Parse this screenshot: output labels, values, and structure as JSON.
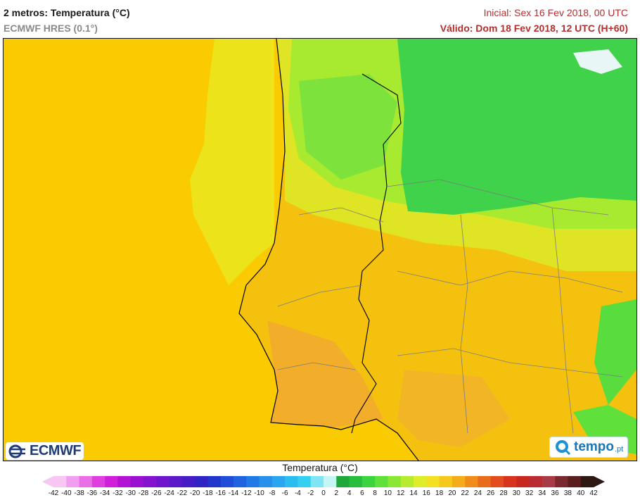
{
  "header": {
    "title": "2 metros: Temperatura (°C)",
    "model": "ECMWF HRES (0.1°)",
    "initial": "Inicial: Sex 16 Fev 2018, 00 UTC",
    "valid": "Válido: Dom 18 Fev 2018, 12 UTC (H+60)"
  },
  "logos": {
    "ecmwf": "ECMWF",
    "tempo": "tempo",
    "tempo_suffix": ".pt"
  },
  "legend": {
    "title": "Temperatura (°C)",
    "ticks": [
      "-42",
      "-40",
      "-38",
      "-36",
      "-34",
      "-32",
      "-30",
      "-28",
      "-26",
      "-24",
      "-22",
      "-20",
      "-18",
      "-16",
      "-14",
      "-12",
      "-10",
      "-8",
      "-6",
      "-4",
      "-2",
      "0",
      "2",
      "4",
      "6",
      "8",
      "10",
      "12",
      "14",
      "16",
      "18",
      "20",
      "22",
      "24",
      "26",
      "28",
      "30",
      "32",
      "34",
      "36",
      "38",
      "40",
      "42"
    ],
    "colors": [
      "#f7c6f2",
      "#f29ef0",
      "#ea6ee8",
      "#e03fe0",
      "#cf1fd8",
      "#b311d3",
      "#9a10d0",
      "#8512cf",
      "#6f16cc",
      "#5a1ac8",
      "#461cc5",
      "#2f24c4",
      "#2036cc",
      "#1f4dd8",
      "#1f63e0",
      "#1f7ae6",
      "#2690ea",
      "#2aa6ee",
      "#2bbcf0",
      "#35cff2",
      "#7ee5f4",
      "#c7f4f4",
      "#1ea83a",
      "#27be3c",
      "#3cd43e",
      "#5fe03a",
      "#8ae834",
      "#b5ec2f",
      "#dded2b",
      "#f3df24",
      "#f6c81e",
      "#f5ac1a",
      "#f08c1a",
      "#e86c1c",
      "#e14d1c",
      "#d8331c",
      "#c8281f",
      "#b82c32",
      "#a83c46",
      "#7a2a2e",
      "#5a1f1c",
      "#2e1814"
    ]
  },
  "colors": {
    "sea": "#f9cb00",
    "land_warm": "#f4c20e",
    "land_hot": "#f2ad2a",
    "land_mild": "#e8e21a",
    "land_cool": "#b6ec2e",
    "land_cold": "#3fd24a",
    "snow": "#e8f7f6"
  }
}
